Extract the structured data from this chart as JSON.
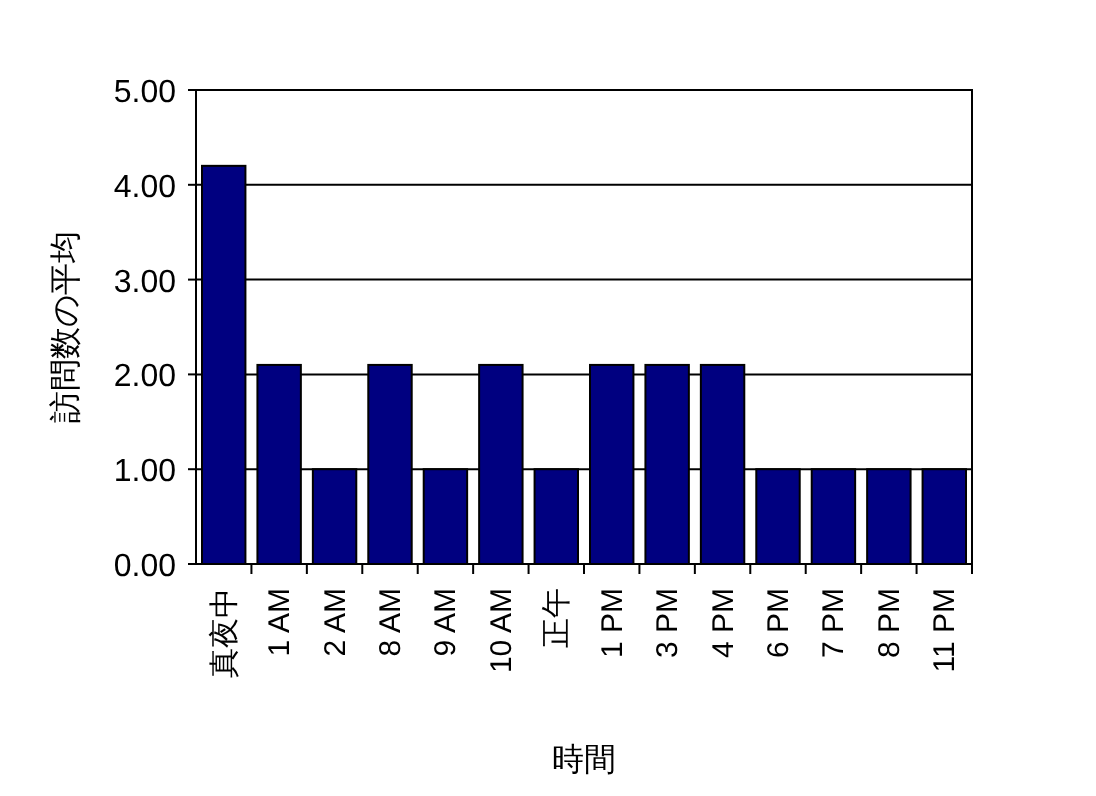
{
  "chart_data": {
    "type": "bar",
    "xlabel": "時間",
    "ylabel": "訪問数の平均",
    "categories": [
      "真夜中",
      "1 AM",
      "2 AM",
      "8 AM",
      "9 AM",
      "10 AM",
      "正午",
      "1 PM",
      "3 PM",
      "4 PM",
      "6 PM",
      "7 PM",
      "8 PM",
      "11 PM"
    ],
    "values": [
      4.2,
      2.1,
      1.0,
      2.1,
      1.0,
      2.1,
      1.0,
      2.1,
      2.1,
      2.1,
      1.0,
      1.0,
      1.0,
      1.0
    ],
    "color": "#000080",
    "ylim": [
      0,
      5
    ],
    "yticks": [
      {
        "value": 0,
        "label": "0.00"
      },
      {
        "value": 1,
        "label": "1.00"
      },
      {
        "value": 2,
        "label": "2.00"
      },
      {
        "value": 3,
        "label": "3.00"
      },
      {
        "value": 4,
        "label": "4.00"
      },
      {
        "value": 5,
        "label": "5.00"
      }
    ],
    "grid": "y"
  }
}
